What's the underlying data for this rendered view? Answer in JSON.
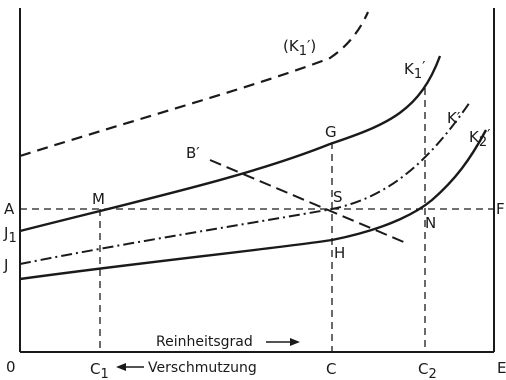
{
  "labels": {
    "origin": "0",
    "e_corner": "E",
    "a": "A",
    "j1": "J",
    "j1_sub": "1",
    "j": "J",
    "f": "F",
    "m": "M",
    "s": "S",
    "g": "G",
    "h": "H",
    "n": "N",
    "b_prime": "B′",
    "k1_paren": "(K",
    "k1_paren_sub": "1",
    "k1_paren_end": "′)",
    "k1": "K",
    "k1_sub": "1",
    "k1_prime": "′",
    "k_prime": "K′",
    "k2": "K",
    "k2_sub": "2",
    "k2_prime": "′",
    "c1": "C",
    "c1_sub": "1",
    "c": "C",
    "c2": "C",
    "c2_sub": "2"
  },
  "axis_text": {
    "reinheitsgrad": "Reinheitsgrad",
    "verschmutzung": "Verschmutzung"
  }
}
